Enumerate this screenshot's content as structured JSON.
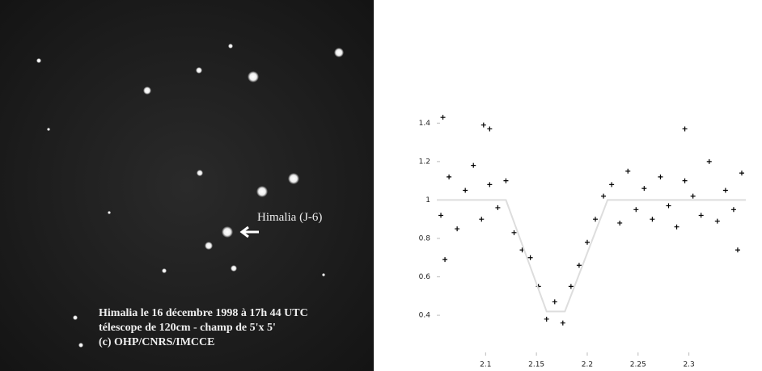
{
  "image": {
    "object_label": "Himalia (J-6)",
    "caption": [
      "Himalia le 16 décembre 1998 à 17h 44 UTC",
      "télescope de 120cm - champ de 5'x 5'",
      "(c) OHP/CNRS/IMCCE"
    ]
  },
  "chart_data": {
    "type": "scatter",
    "series": [
      {
        "color": "#000000",
        "x": [
          2.056,
          2.064,
          2.072,
          2.08,
          2.088,
          2.096,
          2.104,
          2.112,
          2.12,
          2.128,
          2.136,
          2.144,
          2.152,
          2.16,
          2.168,
          2.176,
          2.184,
          2.192,
          2.2,
          2.208,
          2.216,
          2.224,
          2.232,
          2.24,
          2.248,
          2.256,
          2.264,
          2.272,
          2.28,
          2.288,
          2.296,
          2.304,
          2.312,
          2.32,
          2.328,
          2.336,
          2.344,
          2.352,
          2.058,
          2.098,
          2.104,
          2.296,
          2.06,
          2.348
        ],
        "values": [
          0.92,
          1.12,
          0.85,
          1.05,
          1.18,
          0.9,
          1.08,
          0.96,
          1.1,
          0.83,
          0.74,
          0.7,
          0.55,
          0.38,
          0.47,
          0.36,
          0.55,
          0.66,
          0.78,
          0.9,
          1.02,
          1.08,
          0.88,
          1.15,
          0.95,
          1.06,
          0.9,
          1.12,
          0.97,
          0.86,
          1.1,
          1.02,
          0.92,
          1.2,
          0.89,
          1.05,
          0.95,
          1.14,
          1.43,
          1.39,
          1.37,
          1.37,
          0.69,
          0.74
        ]
      },
      {
        "type": "line",
        "color": "#dddddd",
        "x": [
          2.052,
          2.12,
          2.16,
          2.178,
          2.22,
          2.356
        ],
        "values": [
          1,
          1,
          0.42,
          0.42,
          1,
          1
        ]
      }
    ],
    "xlim": [
      2.052,
      2.356
    ],
    "ylim": [
      0.19,
      1.62
    ],
    "xticks": [
      2.1,
      2.15,
      2.2,
      2.25,
      2.3
    ],
    "yticks": [
      0.4,
      0.6,
      0.8,
      1,
      1.2,
      1.4
    ]
  }
}
